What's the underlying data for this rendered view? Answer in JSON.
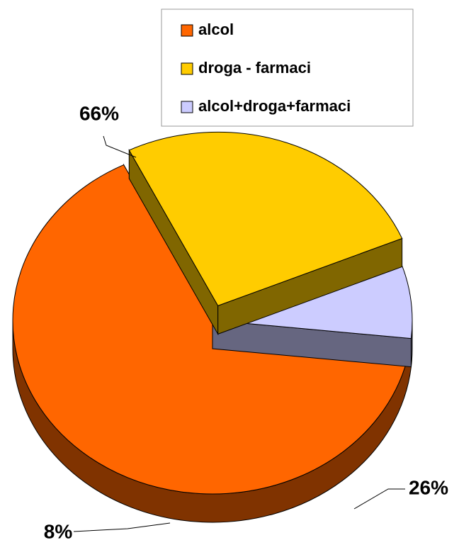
{
  "chart_data": {
    "type": "pie",
    "categories": [
      "alcol",
      "droga - farmaci",
      "alcol+droga+farmaci"
    ],
    "values": [
      66,
      26,
      8
    ],
    "value_labels": [
      "66%",
      "26%",
      "8%"
    ],
    "colors": [
      "#ff6600",
      "#ffcc00",
      "#ccccff"
    ],
    "legend": "top-right"
  }
}
